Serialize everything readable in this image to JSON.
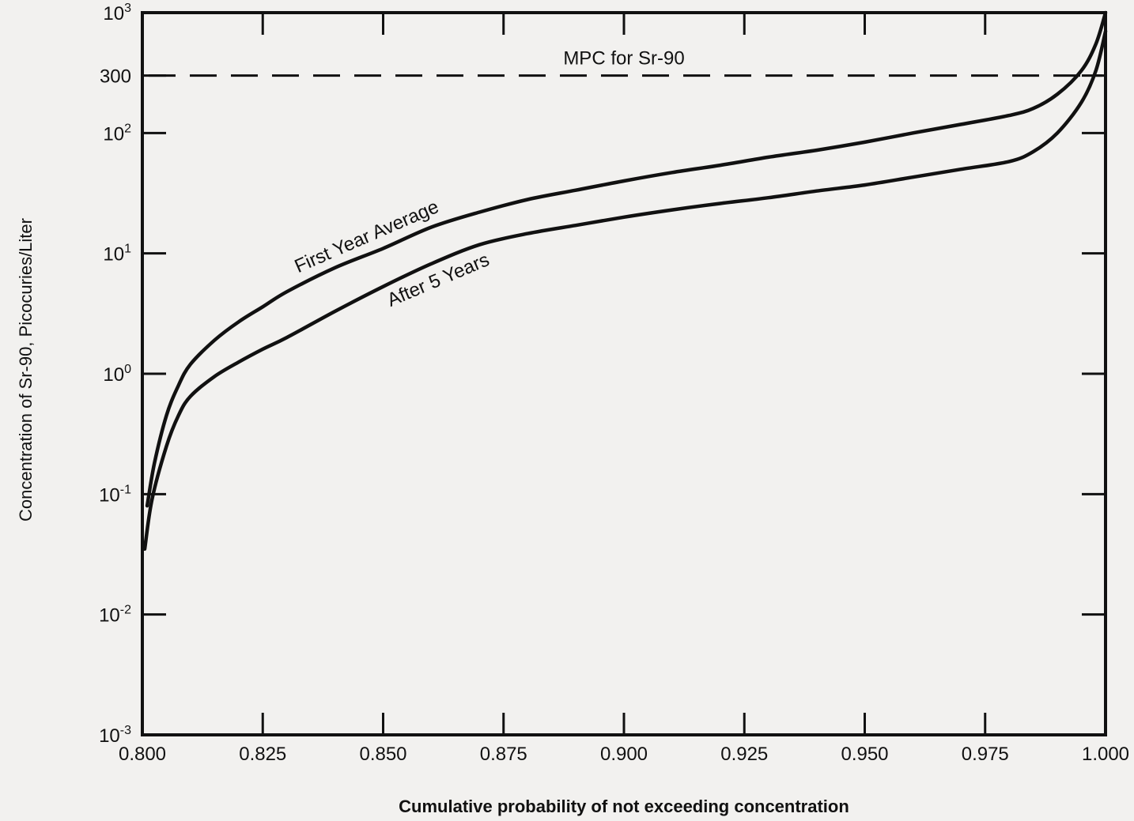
{
  "chart_data": {
    "type": "line",
    "xlabel": "Cumulative probability of not exceeding concentration",
    "ylabel": "Concentration of Sr-90, Picocuries/Liter",
    "xlim": [
      0.8,
      1.0
    ],
    "ylim": [
      0.001,
      1000
    ],
    "yscale": "log",
    "grid": false,
    "x_ticks": [
      0.8,
      0.825,
      0.85,
      0.875,
      0.9,
      0.925,
      0.95,
      0.975,
      1.0
    ],
    "x_tick_labels": [
      "0.800",
      "0.825",
      "0.850",
      "0.875",
      "0.900",
      "0.925",
      "0.950",
      "0.975",
      "1.000"
    ],
    "y_ticks": [
      0.001,
      0.01,
      0.1,
      1,
      10,
      100,
      300,
      1000
    ],
    "y_tick_labels": [
      {
        "base": "10",
        "exp": "-3"
      },
      {
        "base": "10",
        "exp": "-2"
      },
      {
        "base": "10",
        "exp": "-1"
      },
      {
        "base": "10",
        "exp": "0"
      },
      {
        "base": "10",
        "exp": "1"
      },
      {
        "base": "10",
        "exp": "2"
      },
      {
        "base": "300",
        "exp": ""
      },
      {
        "base": "10",
        "exp": "3"
      }
    ],
    "reference_line": {
      "y": 300,
      "label": "MPC for Sr-90",
      "style": "dashed"
    },
    "series": [
      {
        "name": "First Year Average",
        "x": [
          0.801,
          0.8025,
          0.805,
          0.8075,
          0.81,
          0.815,
          0.82,
          0.825,
          0.83,
          0.84,
          0.85,
          0.86,
          0.87,
          0.88,
          0.89,
          0.9,
          0.91,
          0.92,
          0.93,
          0.94,
          0.95,
          0.96,
          0.97,
          0.98,
          0.985,
          0.99,
          0.995,
          0.998,
          1.0
        ],
        "y": [
          0.08,
          0.18,
          0.45,
          0.8,
          1.2,
          1.9,
          2.7,
          3.6,
          4.8,
          7.6,
          11,
          16.5,
          22,
          28,
          33.5,
          40,
          47,
          54,
          63,
          72,
          84,
          100,
          118,
          140,
          160,
          210,
          330,
          550,
          1000
        ]
      },
      {
        "name": "After 5 Years",
        "x": [
          0.8005,
          0.802,
          0.805,
          0.8075,
          0.81,
          0.815,
          0.82,
          0.825,
          0.83,
          0.84,
          0.85,
          0.86,
          0.87,
          0.88,
          0.89,
          0.9,
          0.91,
          0.92,
          0.93,
          0.94,
          0.95,
          0.96,
          0.97,
          0.98,
          0.985,
          0.99,
          0.995,
          0.998,
          1.0
        ],
        "y": [
          0.035,
          0.09,
          0.25,
          0.45,
          0.65,
          0.95,
          1.25,
          1.6,
          2.0,
          3.3,
          5.3,
          8.2,
          11.8,
          14.6,
          17.1,
          20,
          23,
          26,
          29,
          33,
          37,
          43,
          50,
          58,
          70,
          100,
          180,
          330,
          700
        ]
      }
    ],
    "annotations": [
      {
        "text": "First Year Average",
        "series": "First Year Average",
        "at_x": 0.848
      },
      {
        "text": "After 5 Years",
        "series": "After 5 Years",
        "at_x": 0.86
      }
    ]
  }
}
